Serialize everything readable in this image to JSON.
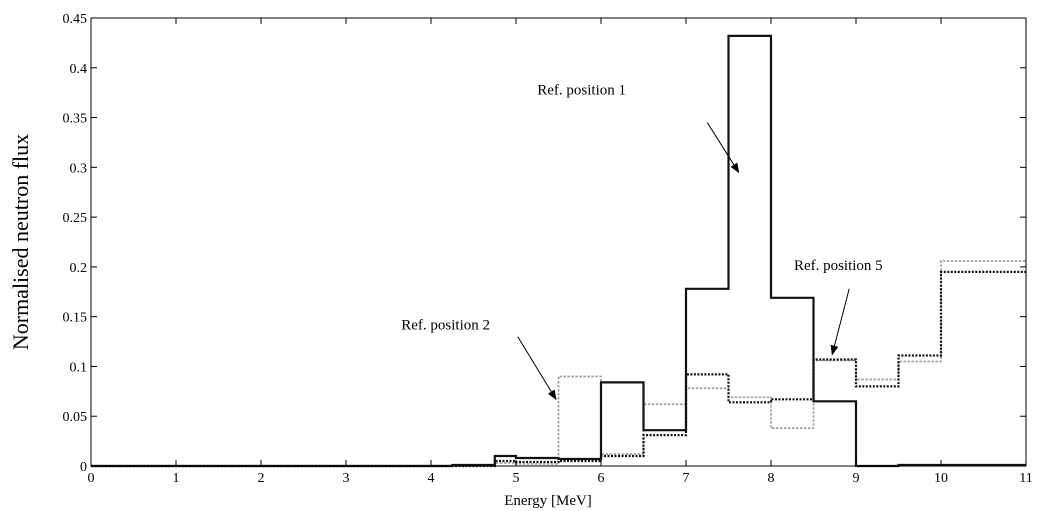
{
  "chart_data": {
    "type": "line",
    "xlabel": "Energy [MeV]",
    "ylabel": "Normalised neutron flux",
    "xlim": [
      0,
      11
    ],
    "ylim": [
      0,
      0.45
    ],
    "xticks": [
      0,
      1,
      2,
      3,
      4,
      5,
      6,
      7,
      8,
      9,
      10,
      11
    ],
    "yticks": [
      0,
      0.05,
      0.1,
      0.15,
      0.2,
      0.25,
      0.3,
      0.35,
      0.4,
      0.45
    ],
    "ytick_labels": [
      "0",
      "0.05",
      "0.1",
      "0.15",
      "0.2",
      "0.25",
      "0.3",
      "0.35",
      "0.4",
      "0.45"
    ],
    "grid": false,
    "series": [
      {
        "style": "solid-black",
        "edges": [
          0,
          4.25,
          4.75,
          5,
          5.5,
          6,
          6.5,
          7,
          7.5,
          8,
          8.5,
          9,
          9.5,
          10,
          11
        ],
        "values": [
          0,
          0.001,
          0.01,
          0.008,
          0.007,
          0.084,
          0.036,
          0.178,
          0.432,
          0.169,
          0.065,
          0,
          0.001,
          0.001
        ]
      },
      {
        "style": "dotted-black",
        "edges": [
          0,
          4.75,
          5,
          5.5,
          6,
          6.5,
          7,
          7.5,
          8,
          8.5,
          9,
          9.5,
          10,
          11
        ],
        "values": [
          0,
          0.005,
          0.004,
          0.005,
          0.01,
          0.031,
          0.092,
          0.064,
          0.067,
          0.107,
          0.08,
          0.111,
          0.195,
          0.195
        ]
      },
      {
        "style": "dotted-gray",
        "edges": [
          0,
          4.75,
          5,
          5.5,
          6,
          6.5,
          7,
          7.5,
          8,
          8.5,
          9,
          9.5,
          10,
          11
        ],
        "values": [
          0,
          0.003,
          0.002,
          0.09,
          0.012,
          0.062,
          0.078,
          0.069,
          0.038,
          0.106,
          0.087,
          0.105,
          0.206,
          0.206
        ]
      }
    ],
    "annotations": [
      {
        "text": "Ref. position 1",
        "text_at": [
          5.25,
          0.373
        ],
        "arrow_from": [
          7.25,
          0.345
        ],
        "arrow_to": [
          7.62,
          0.295
        ]
      },
      {
        "text": "Ref. position 2",
        "text_at": [
          3.65,
          0.137
        ],
        "arrow_from": [
          5.02,
          0.13
        ],
        "arrow_to": [
          5.47,
          0.067
        ]
      },
      {
        "text": "Ref. position 5",
        "text_at": [
          8.27,
          0.197
        ],
        "arrow_from": [
          8.92,
          0.178
        ],
        "arrow_to": [
          8.72,
          0.112
        ]
      }
    ]
  }
}
